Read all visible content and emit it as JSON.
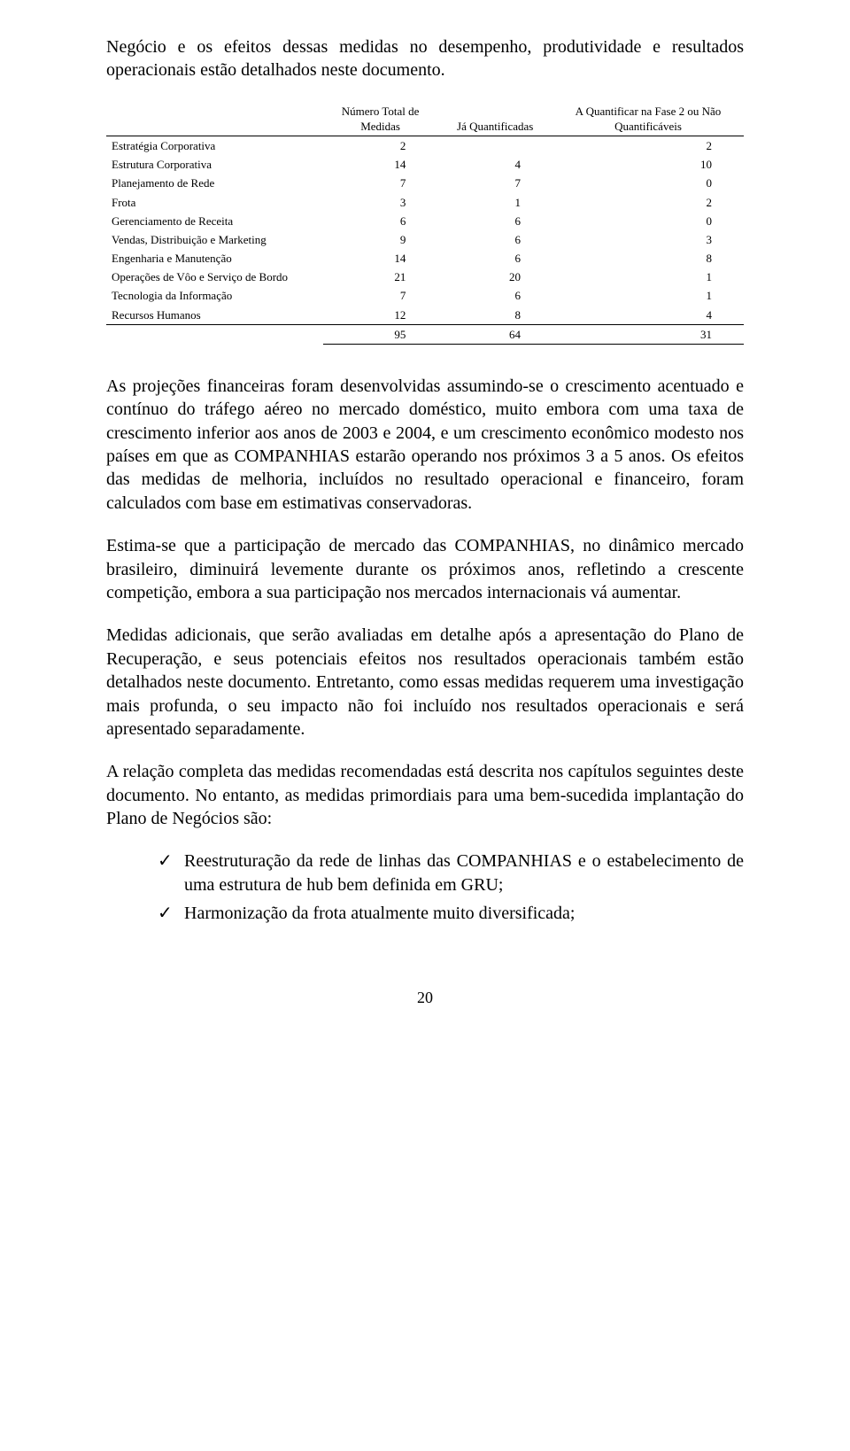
{
  "intro": "Negócio e os efeitos dessas medidas no desempenho, produtividade e resultados operacionais estão detalhados neste documento.",
  "table": {
    "headers": {
      "label": "",
      "col1": "Número Total de Medidas",
      "col2": "Já Quantificadas",
      "col3": "A Quantificar na Fase 2 ou Não Quantificáveis"
    },
    "rows": [
      {
        "label": "Estratégia Corporativa",
        "a": "2",
        "b": "",
        "c": "2"
      },
      {
        "label": "Estrutura Corporativa",
        "a": "14",
        "b": "4",
        "c": "10"
      },
      {
        "label": "Planejamento de Rede",
        "a": "7",
        "b": "7",
        "c": "0"
      },
      {
        "label": "Frota",
        "a": "3",
        "b": "1",
        "c": "2"
      },
      {
        "label": "Gerenciamento de Receita",
        "a": "6",
        "b": "6",
        "c": "0"
      },
      {
        "label": "Vendas, Distribuição e Marketing",
        "a": "9",
        "b": "6",
        "c": "3"
      },
      {
        "label": "Engenharia e Manutenção",
        "a": "14",
        "b": "6",
        "c": "8"
      },
      {
        "label": "Operações de Vôo e Serviço de Bordo",
        "a": "21",
        "b": "20",
        "c": "1"
      },
      {
        "label": "Tecnologia da Informação",
        "a": "7",
        "b": "6",
        "c": "1"
      },
      {
        "label": "Recursos Humanos",
        "a": "12",
        "b": "8",
        "c": "4"
      }
    ],
    "total": {
      "a": "95",
      "b": "64",
      "c": "31"
    }
  },
  "para1": "As projeções financeiras foram desenvolvidas assumindo-se o crescimento acentuado e contínuo do tráfego aéreo no mercado doméstico, muito embora com uma taxa de crescimento inferior aos anos de 2003 e 2004, e um crescimento econômico modesto nos países em que as COMPANHIAS estarão operando nos próximos 3 a 5 anos. Os efeitos das medidas de melhoria, incluídos no resultado operacional e financeiro, foram calculados com base em estimativas conservadoras.",
  "para2": "Estima-se que a participação de mercado das COMPANHIAS, no dinâmico mercado brasileiro, diminuirá levemente durante os próximos anos, refletindo a crescente competição, embora a sua participação nos mercados internacionais vá aumentar.",
  "para3": "Medidas adicionais, que serão avaliadas em detalhe após a apresentação do Plano de Recuperação, e seus potenciais efeitos nos resultados operacionais também estão detalhados neste documento. Entretanto, como essas medidas requerem uma investigação mais profunda, o seu impacto não foi incluído nos resultados operacionais e será apresentado separadamente.",
  "para4": "A relação completa das medidas recomendadas está descrita nos capítulos seguintes deste documento. No entanto, as medidas primordiais para uma bem-sucedida implantação do Plano de Negócios são:",
  "bullets": [
    "Reestruturação da rede de linhas das COMPANHIAS e o estabelecimento de uma estrutura de hub bem definida em GRU;",
    "Harmonização da frota atualmente muito diversificada;"
  ],
  "checkmark": "✓",
  "pageNumber": "20"
}
